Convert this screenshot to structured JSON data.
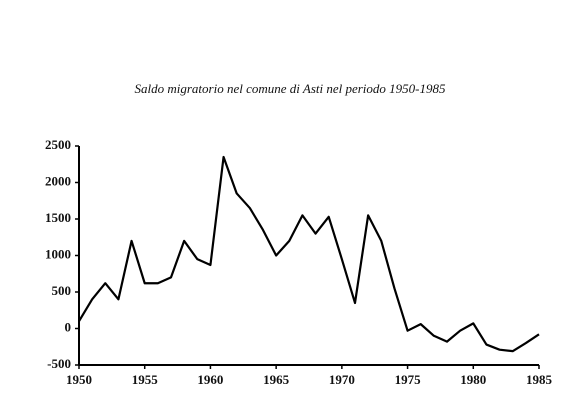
{
  "chart_data": {
    "type": "line",
    "title": "Saldo migratorio nel comune di Asti nel periodo 1950-1985",
    "x": [
      1950,
      1951,
      1952,
      1953,
      1954,
      1955,
      1956,
      1957,
      1958,
      1959,
      1960,
      1961,
      1962,
      1963,
      1964,
      1965,
      1966,
      1967,
      1968,
      1969,
      1970,
      1971,
      1972,
      1973,
      1974,
      1975,
      1976,
      1977,
      1978,
      1979,
      1980,
      1981,
      1982,
      1983,
      1984,
      1985
    ],
    "series": [
      {
        "color": "#000000",
        "values": [
          100,
          400,
          620,
          400,
          1200,
          620,
          620,
          700,
          1200,
          950,
          870,
          2350,
          1850,
          1650,
          1350,
          1000,
          1200,
          1550,
          1300,
          1530,
          950,
          350,
          1550,
          1200,
          550,
          -30,
          60,
          -100,
          -180,
          -30,
          70,
          -220,
          -290,
          -310,
          -200,
          -80
        ]
      }
    ],
    "xlim": [
      1950,
      1985
    ],
    "xticks": [
      1950,
      1955,
      1960,
      1965,
      1970,
      1975,
      1980,
      1985
    ],
    "ylim": [
      -500,
      2500
    ],
    "yticks": [
      -500,
      0,
      500,
      1000,
      1500,
      2000,
      2500
    ]
  }
}
